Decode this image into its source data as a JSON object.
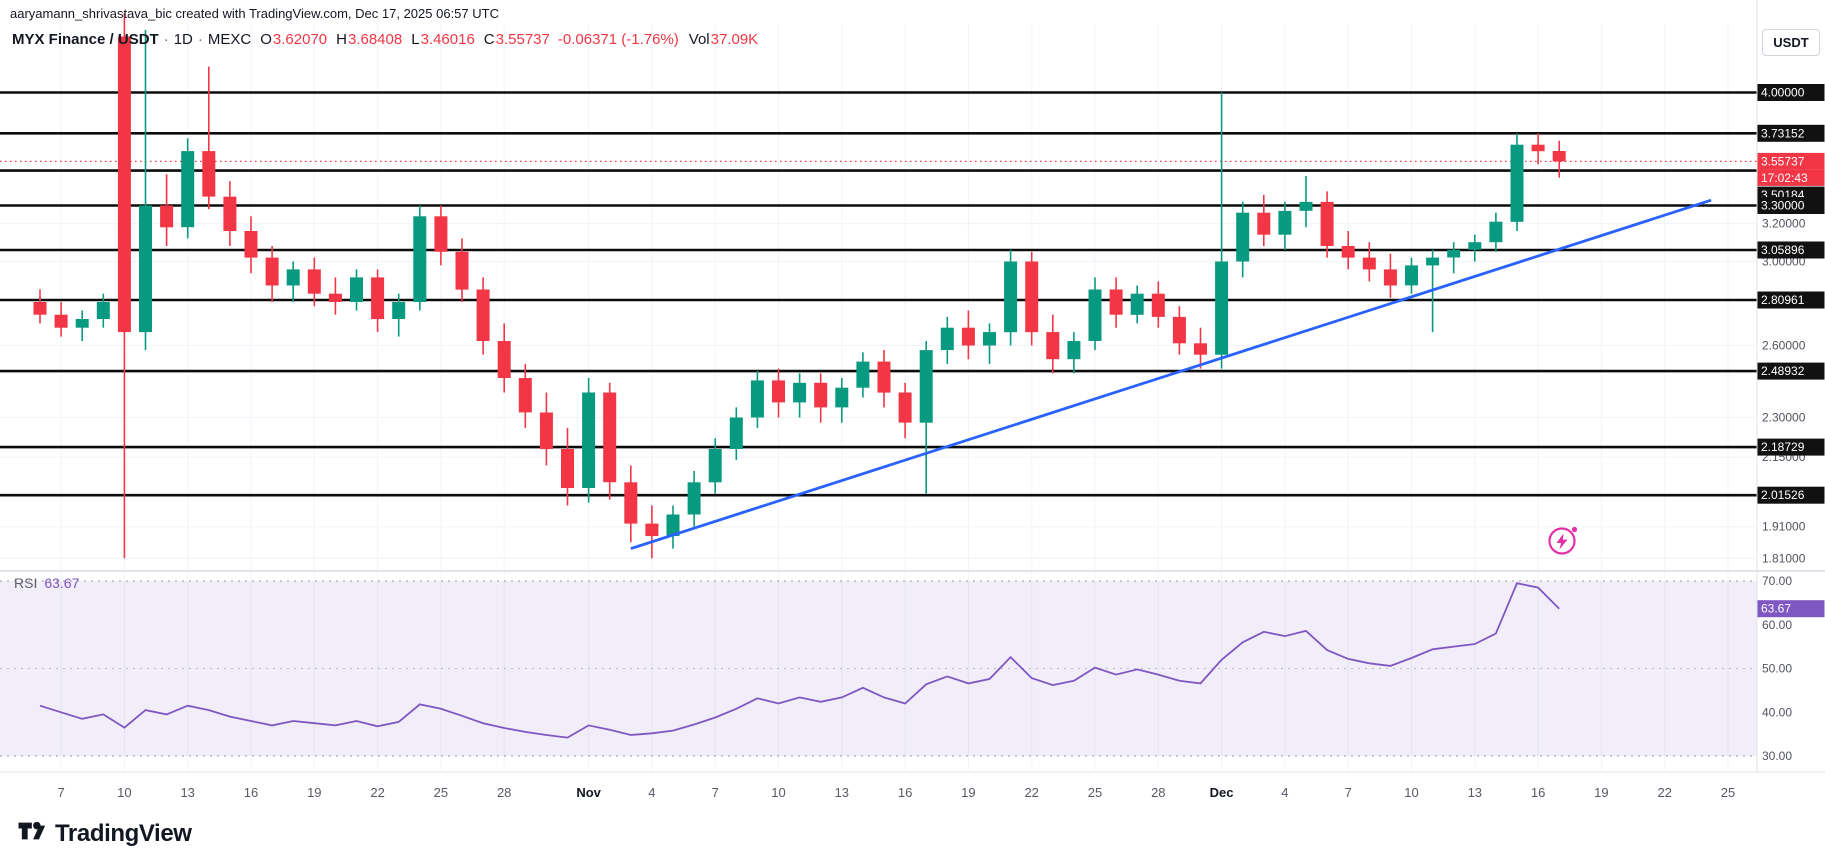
{
  "attribution": "aaryamann_shrivastava_bic created with TradingView.com, Dec 17, 2025 06:57 UTC",
  "header": {
    "symbol": "MYX Finance / USDT",
    "separator": "·",
    "interval": "1D",
    "exchange": "MEXC",
    "ohlc": {
      "o_label": "O",
      "o": "3.62070",
      "h_label": "H",
      "h": "3.68408",
      "l_label": "L",
      "l": "3.46016",
      "c_label": "C",
      "c": "3.55737",
      "change": "-0.06371 (-1.76%)",
      "vol_label": "Vol",
      "vol": "37.09K"
    },
    "colors": {
      "up": "#089981",
      "down": "#f23645"
    }
  },
  "axis": {
    "currency_button": "USDT"
  },
  "rsi_legend": {
    "label": "RSI",
    "value": "63.67"
  },
  "footer": {
    "brand": "TradingView"
  },
  "chart_data": {
    "type": "candlestick",
    "symbol": "MYX Finance / USDT",
    "interval": "1D",
    "exchange": "MEXC",
    "scale": "log",
    "price_axis_range": {
      "top": 4.6,
      "bottom": 1.79
    },
    "levels": [
      "4.00000",
      "3.73152",
      "3.50184",
      "3.30000",
      "3.05896",
      "2.80961",
      "2.48932",
      "2.18729",
      "2.01526"
    ],
    "grid_price_labels": [
      "3.20000",
      "3.00000",
      "2.60000",
      "2.30000",
      "2.15000",
      "1.91000",
      "1.81000"
    ],
    "last_price": {
      "value": "3.55737",
      "countdown": "17:02:43",
      "color": "#f23645"
    },
    "trendline": {
      "color": "#2962ff",
      "start_index": 28,
      "start_price": 1.84,
      "end_index": 79.2,
      "end_price": 3.33
    },
    "time_ticks": [
      {
        "i": 1,
        "label": "7"
      },
      {
        "i": 4,
        "label": "10"
      },
      {
        "i": 7,
        "label": "13"
      },
      {
        "i": 10,
        "label": "16"
      },
      {
        "i": 13,
        "label": "19"
      },
      {
        "i": 16,
        "label": "22"
      },
      {
        "i": 19,
        "label": "25"
      },
      {
        "i": 22,
        "label": "28"
      },
      {
        "i": 26,
        "label": "Nov"
      },
      {
        "i": 29,
        "label": "4"
      },
      {
        "i": 32,
        "label": "7"
      },
      {
        "i": 35,
        "label": "10"
      },
      {
        "i": 38,
        "label": "13"
      },
      {
        "i": 41,
        "label": "16"
      },
      {
        "i": 44,
        "label": "19"
      },
      {
        "i": 47,
        "label": "22"
      },
      {
        "i": 50,
        "label": "25"
      },
      {
        "i": 53,
        "label": "28"
      },
      {
        "i": 56,
        "label": "Dec"
      },
      {
        "i": 59,
        "label": "4"
      },
      {
        "i": 62,
        "label": "7"
      },
      {
        "i": 65,
        "label": "10"
      },
      {
        "i": 68,
        "label": "13"
      },
      {
        "i": 71,
        "label": "16"
      },
      {
        "i": 74,
        "label": "19"
      },
      {
        "i": 77,
        "label": "22"
      },
      {
        "i": 80,
        "label": "25"
      }
    ],
    "candles": [
      {
        "d": "Oct 6",
        "o": 2.8,
        "h": 2.86,
        "l": 2.7,
        "c": 2.74
      },
      {
        "d": "Oct 7",
        "o": 2.74,
        "h": 2.8,
        "l": 2.64,
        "c": 2.68
      },
      {
        "d": "Oct 8",
        "o": 2.68,
        "h": 2.76,
        "l": 2.62,
        "c": 2.72
      },
      {
        "d": "Oct 9",
        "o": 2.72,
        "h": 2.84,
        "l": 2.68,
        "c": 2.8
      },
      {
        "d": "Oct 10",
        "o": 4.4,
        "h": 4.58,
        "l": 1.81,
        "c": 2.66
      },
      {
        "d": "Oct 11",
        "o": 2.66,
        "h": 4.45,
        "l": 2.58,
        "c": 3.3
      },
      {
        "d": "Oct 12",
        "o": 3.3,
        "h": 3.48,
        "l": 3.08,
        "c": 3.18
      },
      {
        "d": "Oct 13",
        "o": 3.18,
        "h": 3.7,
        "l": 3.12,
        "c": 3.62
      },
      {
        "d": "Oct 14",
        "o": 3.62,
        "h": 4.18,
        "l": 3.28,
        "c": 3.35
      },
      {
        "d": "Oct 15",
        "o": 3.35,
        "h": 3.44,
        "l": 3.08,
        "c": 3.16
      },
      {
        "d": "Oct 16",
        "o": 3.16,
        "h": 3.24,
        "l": 2.94,
        "c": 3.02
      },
      {
        "d": "Oct 17",
        "o": 3.02,
        "h": 3.08,
        "l": 2.8,
        "c": 2.88
      },
      {
        "d": "Oct 18",
        "o": 2.88,
        "h": 3.0,
        "l": 2.8,
        "c": 2.96
      },
      {
        "d": "Oct 19",
        "o": 2.96,
        "h": 3.02,
        "l": 2.78,
        "c": 2.84
      },
      {
        "d": "Oct 20",
        "o": 2.84,
        "h": 2.92,
        "l": 2.74,
        "c": 2.8
      },
      {
        "d": "Oct 21",
        "o": 2.8,
        "h": 2.96,
        "l": 2.76,
        "c": 2.92
      },
      {
        "d": "Oct 22",
        "o": 2.92,
        "h": 2.96,
        "l": 2.66,
        "c": 2.72
      },
      {
        "d": "Oct 23",
        "o": 2.72,
        "h": 2.84,
        "l": 2.64,
        "c": 2.8
      },
      {
        "d": "Oct 24",
        "o": 2.8,
        "h": 3.3,
        "l": 2.76,
        "c": 3.24
      },
      {
        "d": "Oct 25",
        "o": 3.24,
        "h": 3.3,
        "l": 2.98,
        "c": 3.05
      },
      {
        "d": "Oct 26",
        "o": 3.05,
        "h": 3.12,
        "l": 2.8,
        "c": 2.86
      },
      {
        "d": "Oct 27",
        "o": 2.86,
        "h": 2.92,
        "l": 2.56,
        "c": 2.62
      },
      {
        "d": "Oct 28",
        "o": 2.62,
        "h": 2.7,
        "l": 2.4,
        "c": 2.46
      },
      {
        "d": "Oct 29",
        "o": 2.46,
        "h": 2.52,
        "l": 2.26,
        "c": 2.32
      },
      {
        "d": "Oct 30",
        "o": 2.32,
        "h": 2.4,
        "l": 2.12,
        "c": 2.18
      },
      {
        "d": "Oct 31",
        "o": 2.18,
        "h": 2.26,
        "l": 1.98,
        "c": 2.04
      },
      {
        "d": "Nov 1",
        "o": 2.04,
        "h": 2.46,
        "l": 1.99,
        "c": 2.4
      },
      {
        "d": "Nov 2",
        "o": 2.4,
        "h": 2.44,
        "l": 2.0,
        "c": 2.06
      },
      {
        "d": "Nov 3",
        "o": 2.06,
        "h": 2.12,
        "l": 1.86,
        "c": 1.92
      },
      {
        "d": "Nov 4",
        "o": 1.92,
        "h": 1.98,
        "l": 1.81,
        "c": 1.88
      },
      {
        "d": "Nov 5",
        "o": 1.88,
        "h": 1.98,
        "l": 1.84,
        "c": 1.95
      },
      {
        "d": "Nov 6",
        "o": 1.95,
        "h": 2.1,
        "l": 1.91,
        "c": 2.06
      },
      {
        "d": "Nov 7",
        "o": 2.06,
        "h": 2.22,
        "l": 2.02,
        "c": 2.18
      },
      {
        "d": "Nov 8",
        "o": 2.18,
        "h": 2.34,
        "l": 2.14,
        "c": 2.3
      },
      {
        "d": "Nov 9",
        "o": 2.3,
        "h": 2.49,
        "l": 2.26,
        "c": 2.45
      },
      {
        "d": "Nov 10",
        "o": 2.45,
        "h": 2.5,
        "l": 2.3,
        "c": 2.36
      },
      {
        "d": "Nov 11",
        "o": 2.36,
        "h": 2.48,
        "l": 2.3,
        "c": 2.44
      },
      {
        "d": "Nov 12",
        "o": 2.44,
        "h": 2.48,
        "l": 2.28,
        "c": 2.34
      },
      {
        "d": "Nov 13",
        "o": 2.34,
        "h": 2.46,
        "l": 2.28,
        "c": 2.42
      },
      {
        "d": "Nov 14",
        "o": 2.42,
        "h": 2.57,
        "l": 2.38,
        "c": 2.53
      },
      {
        "d": "Nov 15",
        "o": 2.53,
        "h": 2.58,
        "l": 2.34,
        "c": 2.4
      },
      {
        "d": "Nov 16",
        "o": 2.4,
        "h": 2.44,
        "l": 2.22,
        "c": 2.28
      },
      {
        "d": "Nov 17",
        "o": 2.28,
        "h": 2.62,
        "l": 2.02,
        "c": 2.58
      },
      {
        "d": "Nov 18",
        "o": 2.58,
        "h": 2.73,
        "l": 2.52,
        "c": 2.68
      },
      {
        "d": "Nov 19",
        "o": 2.68,
        "h": 2.76,
        "l": 2.54,
        "c": 2.6
      },
      {
        "d": "Nov 20",
        "o": 2.6,
        "h": 2.7,
        "l": 2.52,
        "c": 2.66
      },
      {
        "d": "Nov 21",
        "o": 2.66,
        "h": 3.06,
        "l": 2.6,
        "c": 3.0
      },
      {
        "d": "Nov 22",
        "o": 3.0,
        "h": 3.05,
        "l": 2.6,
        "c": 2.66
      },
      {
        "d": "Nov 23",
        "o": 2.66,
        "h": 2.74,
        "l": 2.48,
        "c": 2.54
      },
      {
        "d": "Nov 24",
        "o": 2.54,
        "h": 2.66,
        "l": 2.48,
        "c": 2.62
      },
      {
        "d": "Nov 25",
        "o": 2.62,
        "h": 2.92,
        "l": 2.58,
        "c": 2.86
      },
      {
        "d": "Nov 26",
        "o": 2.86,
        "h": 2.92,
        "l": 2.68,
        "c": 2.74
      },
      {
        "d": "Nov 27",
        "o": 2.74,
        "h": 2.88,
        "l": 2.7,
        "c": 2.84
      },
      {
        "d": "Nov 28",
        "o": 2.84,
        "h": 2.9,
        "l": 2.68,
        "c": 2.73
      },
      {
        "d": "Nov 29",
        "o": 2.73,
        "h": 2.78,
        "l": 2.56,
        "c": 2.61
      },
      {
        "d": "Nov 30",
        "o": 2.61,
        "h": 2.68,
        "l": 2.5,
        "c": 2.56
      },
      {
        "d": "Dec 1",
        "o": 2.56,
        "h": 4.0,
        "l": 2.5,
        "c": 3.0
      },
      {
        "d": "Dec 2",
        "o": 3.0,
        "h": 3.32,
        "l": 2.92,
        "c": 3.26
      },
      {
        "d": "Dec 3",
        "o": 3.26,
        "h": 3.36,
        "l": 3.08,
        "c": 3.14
      },
      {
        "d": "Dec 4",
        "o": 3.14,
        "h": 3.32,
        "l": 3.06,
        "c": 3.27
      },
      {
        "d": "Dec 5",
        "o": 3.27,
        "h": 3.47,
        "l": 3.18,
        "c": 3.32
      },
      {
        "d": "Dec 6",
        "o": 3.32,
        "h": 3.38,
        "l": 3.02,
        "c": 3.08
      },
      {
        "d": "Dec 7",
        "o": 3.08,
        "h": 3.16,
        "l": 2.96,
        "c": 3.02
      },
      {
        "d": "Dec 8",
        "o": 3.02,
        "h": 3.1,
        "l": 2.9,
        "c": 2.96
      },
      {
        "d": "Dec 9",
        "o": 2.96,
        "h": 3.04,
        "l": 2.82,
        "c": 2.88
      },
      {
        "d": "Dec 10",
        "o": 2.88,
        "h": 3.02,
        "l": 2.84,
        "c": 2.98
      },
      {
        "d": "Dec 11",
        "o": 2.98,
        "h": 3.06,
        "l": 2.66,
        "c": 3.02
      },
      {
        "d": "Dec 12",
        "o": 3.02,
        "h": 3.1,
        "l": 2.94,
        "c": 3.06
      },
      {
        "d": "Dec 13",
        "o": 3.06,
        "h": 3.14,
        "l": 3.0,
        "c": 3.1
      },
      {
        "d": "Dec 14",
        "o": 3.1,
        "h": 3.26,
        "l": 3.05,
        "c": 3.21
      },
      {
        "d": "Dec 15",
        "o": 3.21,
        "h": 3.73,
        "l": 3.16,
        "c": 3.66
      },
      {
        "d": "Dec 16",
        "o": 3.66,
        "h": 3.73,
        "l": 3.54,
        "c": 3.62
      },
      {
        "d": "Dec 17",
        "o": 3.6207,
        "h": 3.68408,
        "l": 3.46016,
        "c": 3.55737
      }
    ],
    "rsi": {
      "label": "RSI",
      "current": "63.67",
      "color": "#7e57c2",
      "band": [
        30,
        70
      ],
      "axis_labels": [
        {
          "label": "70.00",
          "value": 70
        },
        {
          "label": "60.00",
          "value": 60
        },
        {
          "label": "50.00",
          "value": 50
        },
        {
          "label": "40.00",
          "value": 40
        },
        {
          "label": "30.00",
          "value": 30
        }
      ],
      "values": [
        41.5,
        40.0,
        38.5,
        39.5,
        36.5,
        40.5,
        39.5,
        41.5,
        40.5,
        39.0,
        38.0,
        37.0,
        38.0,
        37.5,
        37.0,
        38.0,
        36.8,
        37.8,
        41.8,
        40.8,
        39.2,
        37.5,
        36.4,
        35.5,
        34.8,
        34.2,
        37.0,
        36.0,
        34.8,
        35.2,
        35.8,
        37.2,
        38.8,
        40.8,
        43.2,
        42.0,
        43.4,
        42.4,
        43.4,
        45.6,
        43.4,
        42.0,
        46.4,
        48.2,
        46.6,
        47.6,
        52.6,
        47.8,
        46.2,
        47.2,
        50.2,
        48.6,
        49.8,
        48.6,
        47.2,
        46.6,
        52.0,
        56.0,
        58.4,
        57.4,
        58.6,
        54.2,
        52.2,
        51.2,
        50.6,
        52.4,
        54.4,
        55.0,
        55.6,
        58.0,
        69.5,
        68.5,
        63.67
      ]
    }
  }
}
